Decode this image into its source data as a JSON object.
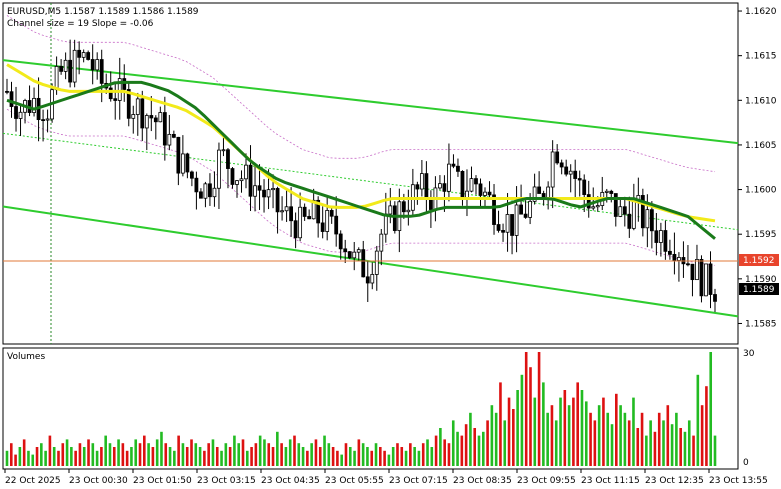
{
  "header": {
    "symbol_line": "EURUSD,M5  1.1587 1.1589 1.1586 1.1589",
    "channel_line": "Channel size = 19 Slope = -0.06"
  },
  "volume_panel": {
    "label": "Volumes",
    "max_label": "30",
    "min_label": "0"
  },
  "price_badges": {
    "line_level": "1.1592",
    "current": "1.1589"
  },
  "colors": {
    "background": "#ffffff",
    "candle": "#000000",
    "channel": "#2ecc2e",
    "ma_fast": "#1a7a1a",
    "ma_slow": "#f2ea1a",
    "envelope": "#c86ec8",
    "level_line": "#e07a3a",
    "volume_up": "#22bb22",
    "volume_down": "#dd1111",
    "badge_red": "#e8442c",
    "badge_black": "#000000"
  },
  "chart_data": [
    {
      "type": "candlestick",
      "title": "EURUSD,M5",
      "y_ticks": [
        "1.1620",
        "1.1615",
        "1.1610",
        "1.1605",
        "1.1600",
        "1.1595",
        "1.1590",
        "1.1585"
      ],
      "ylim": [
        1.15827,
        1.16209
      ],
      "x_ticks": [
        "22 Oct 2025",
        "23 Oct 00:30",
        "23 Oct 01:50",
        "23 Oct 03:15",
        "23 Oct 04:35",
        "23 Oct 05:55",
        "23 Oct 07:15",
        "23 Oct 08:35",
        "23 Oct 09:55",
        "23 Oct 11:15",
        "23 Oct 12:35",
        "23 Oct 13:55"
      ],
      "horizontal_level": 1.1592,
      "channel_upper": {
        "start": 1.16145,
        "end": 1.16052
      },
      "channel_lower": {
        "start": 1.15981,
        "end": 1.15858
      },
      "channel_mid": {
        "start": 1.16063,
        "end": 1.15955
      },
      "close_path": [
        1.1611,
        1.1609,
        1.161,
        1.1609,
        1.1613,
        1.1614,
        1.1615,
        1.1612,
        1.1611,
        1.161,
        1.1609,
        1.1608,
        1.1606,
        1.1603,
        1.1601,
        1.16,
        1.1604,
        1.1602,
        1.1601,
        1.16,
        1.1598,
        1.1597,
        1.1596,
        1.1597,
        1.1596,
        1.1595,
        1.1592,
        1.1591,
        1.1595,
        1.1597,
        1.1599,
        1.16,
        1.1599,
        1.1602,
        1.16,
        1.1601,
        1.1599,
        1.1597,
        1.1596,
        1.1598,
        1.1599,
        1.1605,
        1.1603,
        1.16,
        1.1598,
        1.1599,
        1.1597,
        1.1598,
        1.1596,
        1.1595,
        1.1594,
        1.1592,
        1.159,
        1.1589
      ],
      "ma_fast_path": [
        1.161,
        1.1609,
        1.161,
        1.1611,
        1.1612,
        1.1612,
        1.1611,
        1.1609,
        1.1606,
        1.1603,
        1.1601,
        1.16,
        1.1599,
        1.1598,
        1.1597,
        1.1597,
        1.1598,
        1.1598,
        1.1598,
        1.1599,
        1.1599,
        1.1598,
        1.1599,
        1.1599,
        1.1598,
        1.1597,
        1.15945
      ],
      "ma_slow_path": [
        1.1614,
        1.1612,
        1.1611,
        1.1611,
        1.1611,
        1.161,
        1.1609,
        1.1607,
        1.1604,
        1.1601,
        1.1599,
        1.1598,
        1.1598,
        1.1599,
        1.1599,
        1.1599,
        1.1599,
        1.1599,
        1.1599,
        1.1599,
        1.1599,
        1.1599,
        1.1598,
        1.1597,
        1.15965
      ]
    },
    {
      "type": "bar",
      "title": "Volumes",
      "ylim": [
        0,
        30
      ],
      "y_ticks": [
        "30",
        "0"
      ],
      "values": [
        4,
        6,
        3,
        5,
        7,
        4,
        3,
        5,
        6,
        4,
        8,
        5,
        4,
        6,
        7,
        5,
        4,
        6,
        5,
        7,
        6,
        4,
        5,
        8,
        6,
        5,
        7,
        6,
        4,
        5,
        7,
        6,
        8,
        6,
        5,
        7,
        9,
        6,
        5,
        4,
        8,
        6,
        5,
        7,
        6,
        5,
        4,
        6,
        7,
        5,
        4,
        6,
        5,
        8,
        6,
        7,
        4,
        5,
        6,
        8,
        7,
        6,
        5,
        9,
        6,
        5,
        7,
        8,
        6,
        5,
        4,
        6,
        7,
        5,
        8,
        6,
        5,
        4,
        3,
        6,
        5,
        4,
        7,
        6,
        5,
        4,
        6,
        5,
        4,
        3,
        5,
        6,
        5,
        4,
        6,
        5,
        4,
        6,
        7,
        5,
        8,
        10,
        7,
        6,
        12,
        9,
        8,
        11,
        14,
        10,
        8,
        9,
        12,
        16,
        14,
        22,
        12,
        18,
        15,
        20,
        24,
        30,
        26,
        18,
        30,
        22,
        14,
        16,
        12,
        18,
        20,
        16,
        18,
        22,
        20,
        17,
        14,
        12,
        16,
        18,
        14,
        11,
        19,
        16,
        14,
        12,
        18,
        10,
        14,
        8,
        12,
        9,
        14,
        12,
        16,
        11,
        14,
        10,
        9,
        12,
        8,
        24,
        16,
        21,
        30,
        8
      ]
    }
  ]
}
